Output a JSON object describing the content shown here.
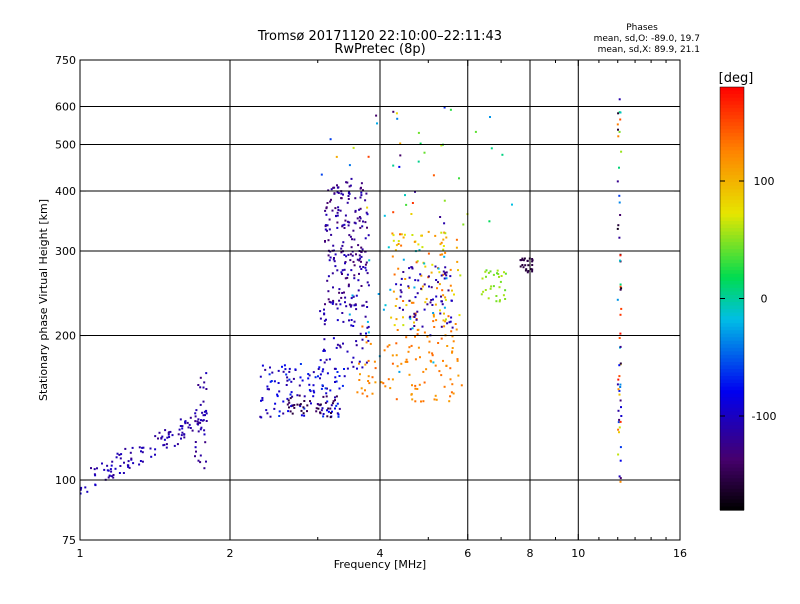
{
  "chart_data": {
    "type": "scatter",
    "title": "Tromsø 20171120 22:10:00–22:11:43",
    "subtitle": "RwPretec (8p)",
    "phases_box": {
      "heading": "Phases",
      "o_mode": "mean, sd,O: -89.0, 19.7",
      "x_mode": "mean, sd,X:  89.9, 21.1"
    },
    "xlabel": "Frequency [MHz]",
    "ylabel": "Stationary phase Virtual Height [km]",
    "xscale": "log",
    "yscale": "log",
    "xlim": [
      1,
      16
    ],
    "ylim": [
      75,
      750
    ],
    "x_ticks": [
      {
        "value": 1,
        "label": "1"
      },
      {
        "value": 2,
        "label": "2"
      },
      {
        "value": 4,
        "label": "4"
      },
      {
        "value": 6,
        "label": "6"
      },
      {
        "value": 8,
        "label": "8"
      },
      {
        "value": 10,
        "label": "10"
      },
      {
        "value": 16,
        "label": "16"
      }
    ],
    "x_grid": [
      2,
      4,
      6,
      8,
      10
    ],
    "y_ticks": [
      {
        "value": 75,
        "label": "75"
      },
      {
        "value": 100,
        "label": "100"
      },
      {
        "value": 200,
        "label": "200"
      },
      {
        "value": 300,
        "label": "300"
      },
      {
        "value": 400,
        "label": "400"
      },
      {
        "value": 500,
        "label": "500"
      },
      {
        "value": 600,
        "label": "600"
      },
      {
        "value": 750,
        "label": "750"
      }
    ],
    "y_grid": [
      100,
      200,
      300,
      400,
      500,
      600
    ],
    "colorbar": {
      "label": "[deg]",
      "min": -180,
      "max": 180,
      "ticks": [
        {
          "value": 100,
          "label": "100"
        },
        {
          "value": 0,
          "label": "0"
        },
        {
          "value": -100,
          "label": "-100"
        }
      ]
    },
    "clusters": [
      {
        "name": "low E-layer trace",
        "f": [
          1.0,
          1.8
        ],
        "h": [
          98,
          135
        ],
        "phase": [
          -125,
          -95
        ],
        "n": 120,
        "shape": "rising"
      },
      {
        "name": "E-layer spike",
        "f": [
          1.7,
          1.8
        ],
        "h": [
          105,
          170
        ],
        "phase": [
          -130,
          -100
        ],
        "n": 30
      },
      {
        "name": "E/F1 band",
        "f": [
          2.3,
          3.4
        ],
        "h": [
          135,
          175
        ],
        "phase": [
          -120,
          -60
        ],
        "n": 120
      },
      {
        "name": "F1 lower band",
        "f": [
          2.6,
          3.3
        ],
        "h": [
          135,
          150
        ],
        "phase": [
          -160,
          -140
        ],
        "n": 40
      },
      {
        "name": "F2 O-mode column",
        "f": [
          3.1,
          3.8
        ],
        "h": [
          230,
          420
        ],
        "phase": [
          -140,
          -100
        ],
        "n": 200
      },
      {
        "name": "F2 lower column",
        "f": [
          3.0,
          3.8
        ],
        "h": [
          170,
          235
        ],
        "phase": [
          -120,
          -90
        ],
        "n": 60
      },
      {
        "name": "F2 X-mode",
        "f": [
          3.6,
          5.9
        ],
        "h": [
          145,
          210
        ],
        "phase": [
          110,
          140
        ],
        "n": 110
      },
      {
        "name": "F2 mixed",
        "f": [
          4.2,
          5.8
        ],
        "h": [
          210,
          330
        ],
        "phase": [
          60,
          140
        ],
        "n": 100
      },
      {
        "name": "F2 O-mode right",
        "f": [
          4.3,
          5.6
        ],
        "h": [
          200,
          280
        ],
        "phase": [
          -130,
          -95
        ],
        "n": 70
      },
      {
        "name": "cyan scatter",
        "f": [
          3.3,
          5.5
        ],
        "h": [
          160,
          310
        ],
        "phase": [
          -30,
          -10
        ],
        "n": 25
      },
      {
        "name": "green trace",
        "f": [
          6.4,
          7.2
        ],
        "h": [
          235,
          275
        ],
        "phase": [
          40,
          60
        ],
        "n": 30
      },
      {
        "name": "purple blob",
        "f": [
          7.6,
          8.1
        ],
        "h": [
          270,
          290
        ],
        "phase": [
          -160,
          -150
        ],
        "n": 25
      },
      {
        "name": "upper scatter",
        "f": [
          3.0,
          7.5
        ],
        "h": [
          340,
          600
        ],
        "phase": [
          -140,
          160
        ],
        "n": 45
      },
      {
        "name": "interference line",
        "f": [
          12.0,
          12.2
        ],
        "h": [
          92,
          650
        ],
        "phase": [
          -180,
          180
        ],
        "n": 60
      }
    ]
  }
}
